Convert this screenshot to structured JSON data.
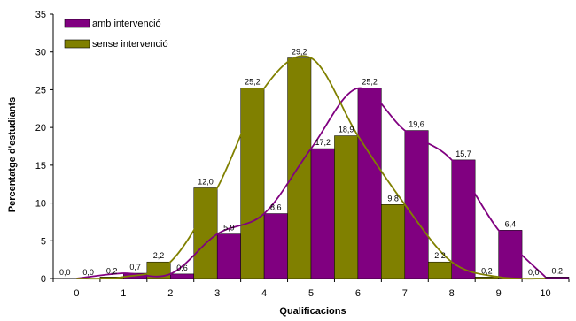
{
  "chart_data": {
    "type": "bar",
    "xlabel": "Qualificacions",
    "ylabel": "Percentatge d'estudiants",
    "ylim": [
      0,
      35
    ],
    "yticks": [
      0,
      5,
      10,
      15,
      20,
      25,
      30,
      35
    ],
    "categories": [
      "0",
      "1",
      "2",
      "3",
      "4",
      "5",
      "6",
      "7",
      "8",
      "9",
      "10"
    ],
    "series": [
      {
        "name": "amb intervenció",
        "color": "#800080",
        "values": [
          0.0,
          0.7,
          0.6,
          5.9,
          8.6,
          17.2,
          25.2,
          19.6,
          15.7,
          6.4,
          0.2
        ],
        "labels": [
          "0,0",
          "0,7",
          "0,6",
          "5,9",
          "8,6",
          "17,2",
          "25,2",
          "19,6",
          "15,7",
          "6,4",
          "0,2"
        ]
      },
      {
        "name": "sense intervenció",
        "color": "#808000",
        "values": [
          0.0,
          0.2,
          2.2,
          12.0,
          25.2,
          29.2,
          18.9,
          9.8,
          2.2,
          0.2,
          0.0
        ],
        "labels": [
          "0,0",
          "0,2",
          "2,2",
          "12,0",
          "25,2",
          "29,2",
          "18,9",
          "9,8",
          "2,2",
          "0,2",
          "0,0"
        ]
      }
    ],
    "trendlines": "smoothed curve per series",
    "legend": "top-left",
    "grid": false
  }
}
